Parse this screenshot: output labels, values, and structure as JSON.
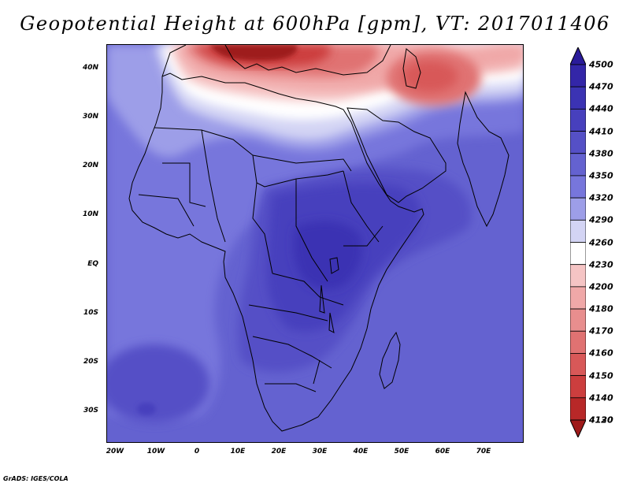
{
  "title": "Geopotential Height at 600hPa [gpm], VT: 2017011406",
  "credit": "GrADS: IGES/COLA",
  "map": {
    "lon_labels": [
      "20W",
      "10W",
      "0",
      "10E",
      "20E",
      "30E",
      "40E",
      "50E",
      "60E",
      "70E"
    ],
    "lat_labels": [
      "40N",
      "30N",
      "20N",
      "10N",
      "EQ",
      "10S",
      "20S",
      "30S"
    ]
  },
  "colorbar": {
    "levels": [
      "4500",
      "4470",
      "4440",
      "4410",
      "4380",
      "4350",
      "4320",
      "4290",
      "4260",
      "4230",
      "4200",
      "4180",
      "4170",
      "4160",
      "4150",
      "4140",
      "4130",
      "4120"
    ],
    "colors": [
      "#2a1b9a",
      "#3326a8",
      "#3b33b3",
      "#4740bd",
      "#5550c6",
      "#6462d0",
      "#7776dc",
      "#9d9ee8",
      "#d3d4f4",
      "#ffffff",
      "#f5c4c4",
      "#f0a8a8",
      "#e88e8e",
      "#e07272",
      "#d85858",
      "#cc3e3e",
      "#b82828",
      "#9e1a1a"
    ]
  }
}
